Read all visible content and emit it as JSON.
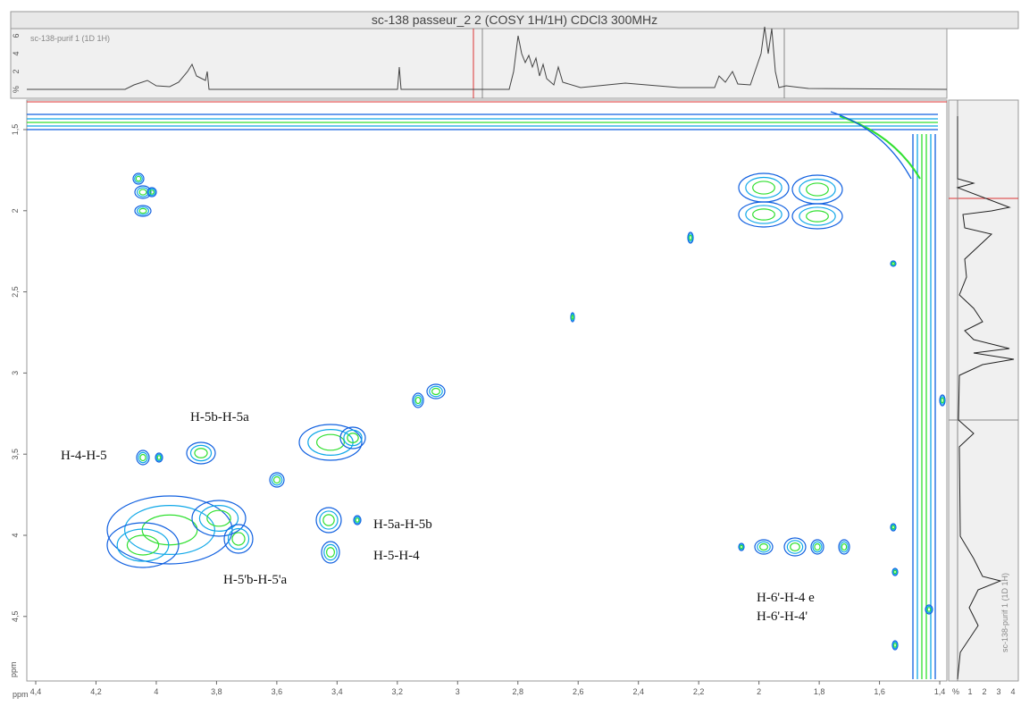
{
  "title": "sc-138 passeur_2 2 (COSY 1H/1H) CDCl3 300MHz",
  "top_spectrum": {
    "label": "sc-138-purif 1 (1D 1H)",
    "yticks": [
      "6",
      "4",
      "2",
      "%"
    ]
  },
  "side_spectrum": {
    "label": "sc-138-purif 1 (1D 1H)",
    "xticks": [
      "%",
      "1",
      "2",
      "3",
      "4"
    ]
  },
  "x_axis": {
    "unit": "ppm",
    "ticks": [
      "4,4",
      "4,2",
      "4",
      "3,8",
      "3,6",
      "3,4",
      "3,2",
      "3",
      "2,8",
      "2,6",
      "2,4",
      "2,2",
      "2",
      "1,8",
      "1,6",
      "1,4"
    ]
  },
  "y_axis": {
    "unit": "ppm",
    "ticks": [
      "1,5",
      "2",
      "2,5",
      "3",
      "3,5",
      "4",
      "4,5"
    ]
  },
  "annotations": [
    "H-4-H-5",
    "H-5b-H-5a",
    "H-5a-H-5b",
    "H-5-H-4",
    "H-5'b-H-5'a",
    "H-6'-H-4 e",
    "H-6'-H-4'"
  ]
}
